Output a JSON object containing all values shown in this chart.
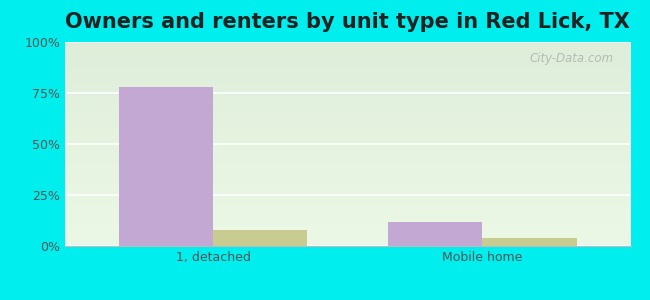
{
  "title": "Owners and renters by unit type in Red Lick, TX",
  "categories": [
    "1, detached",
    "Mobile home"
  ],
  "owner_values": [
    78,
    12
  ],
  "renter_values": [
    8,
    4
  ],
  "owner_color": "#c4a8d4",
  "renter_color": "#c8cc90",
  "ylim": [
    0,
    100
  ],
  "yticks": [
    0,
    25,
    50,
    75,
    100
  ],
  "ytick_labels": [
    "0%",
    "25%",
    "50%",
    "75%",
    "100%"
  ],
  "outer_bg": "#00eeee",
  "title_fontsize": 15,
  "watermark": "City-Data.com",
  "bar_width": 0.35
}
